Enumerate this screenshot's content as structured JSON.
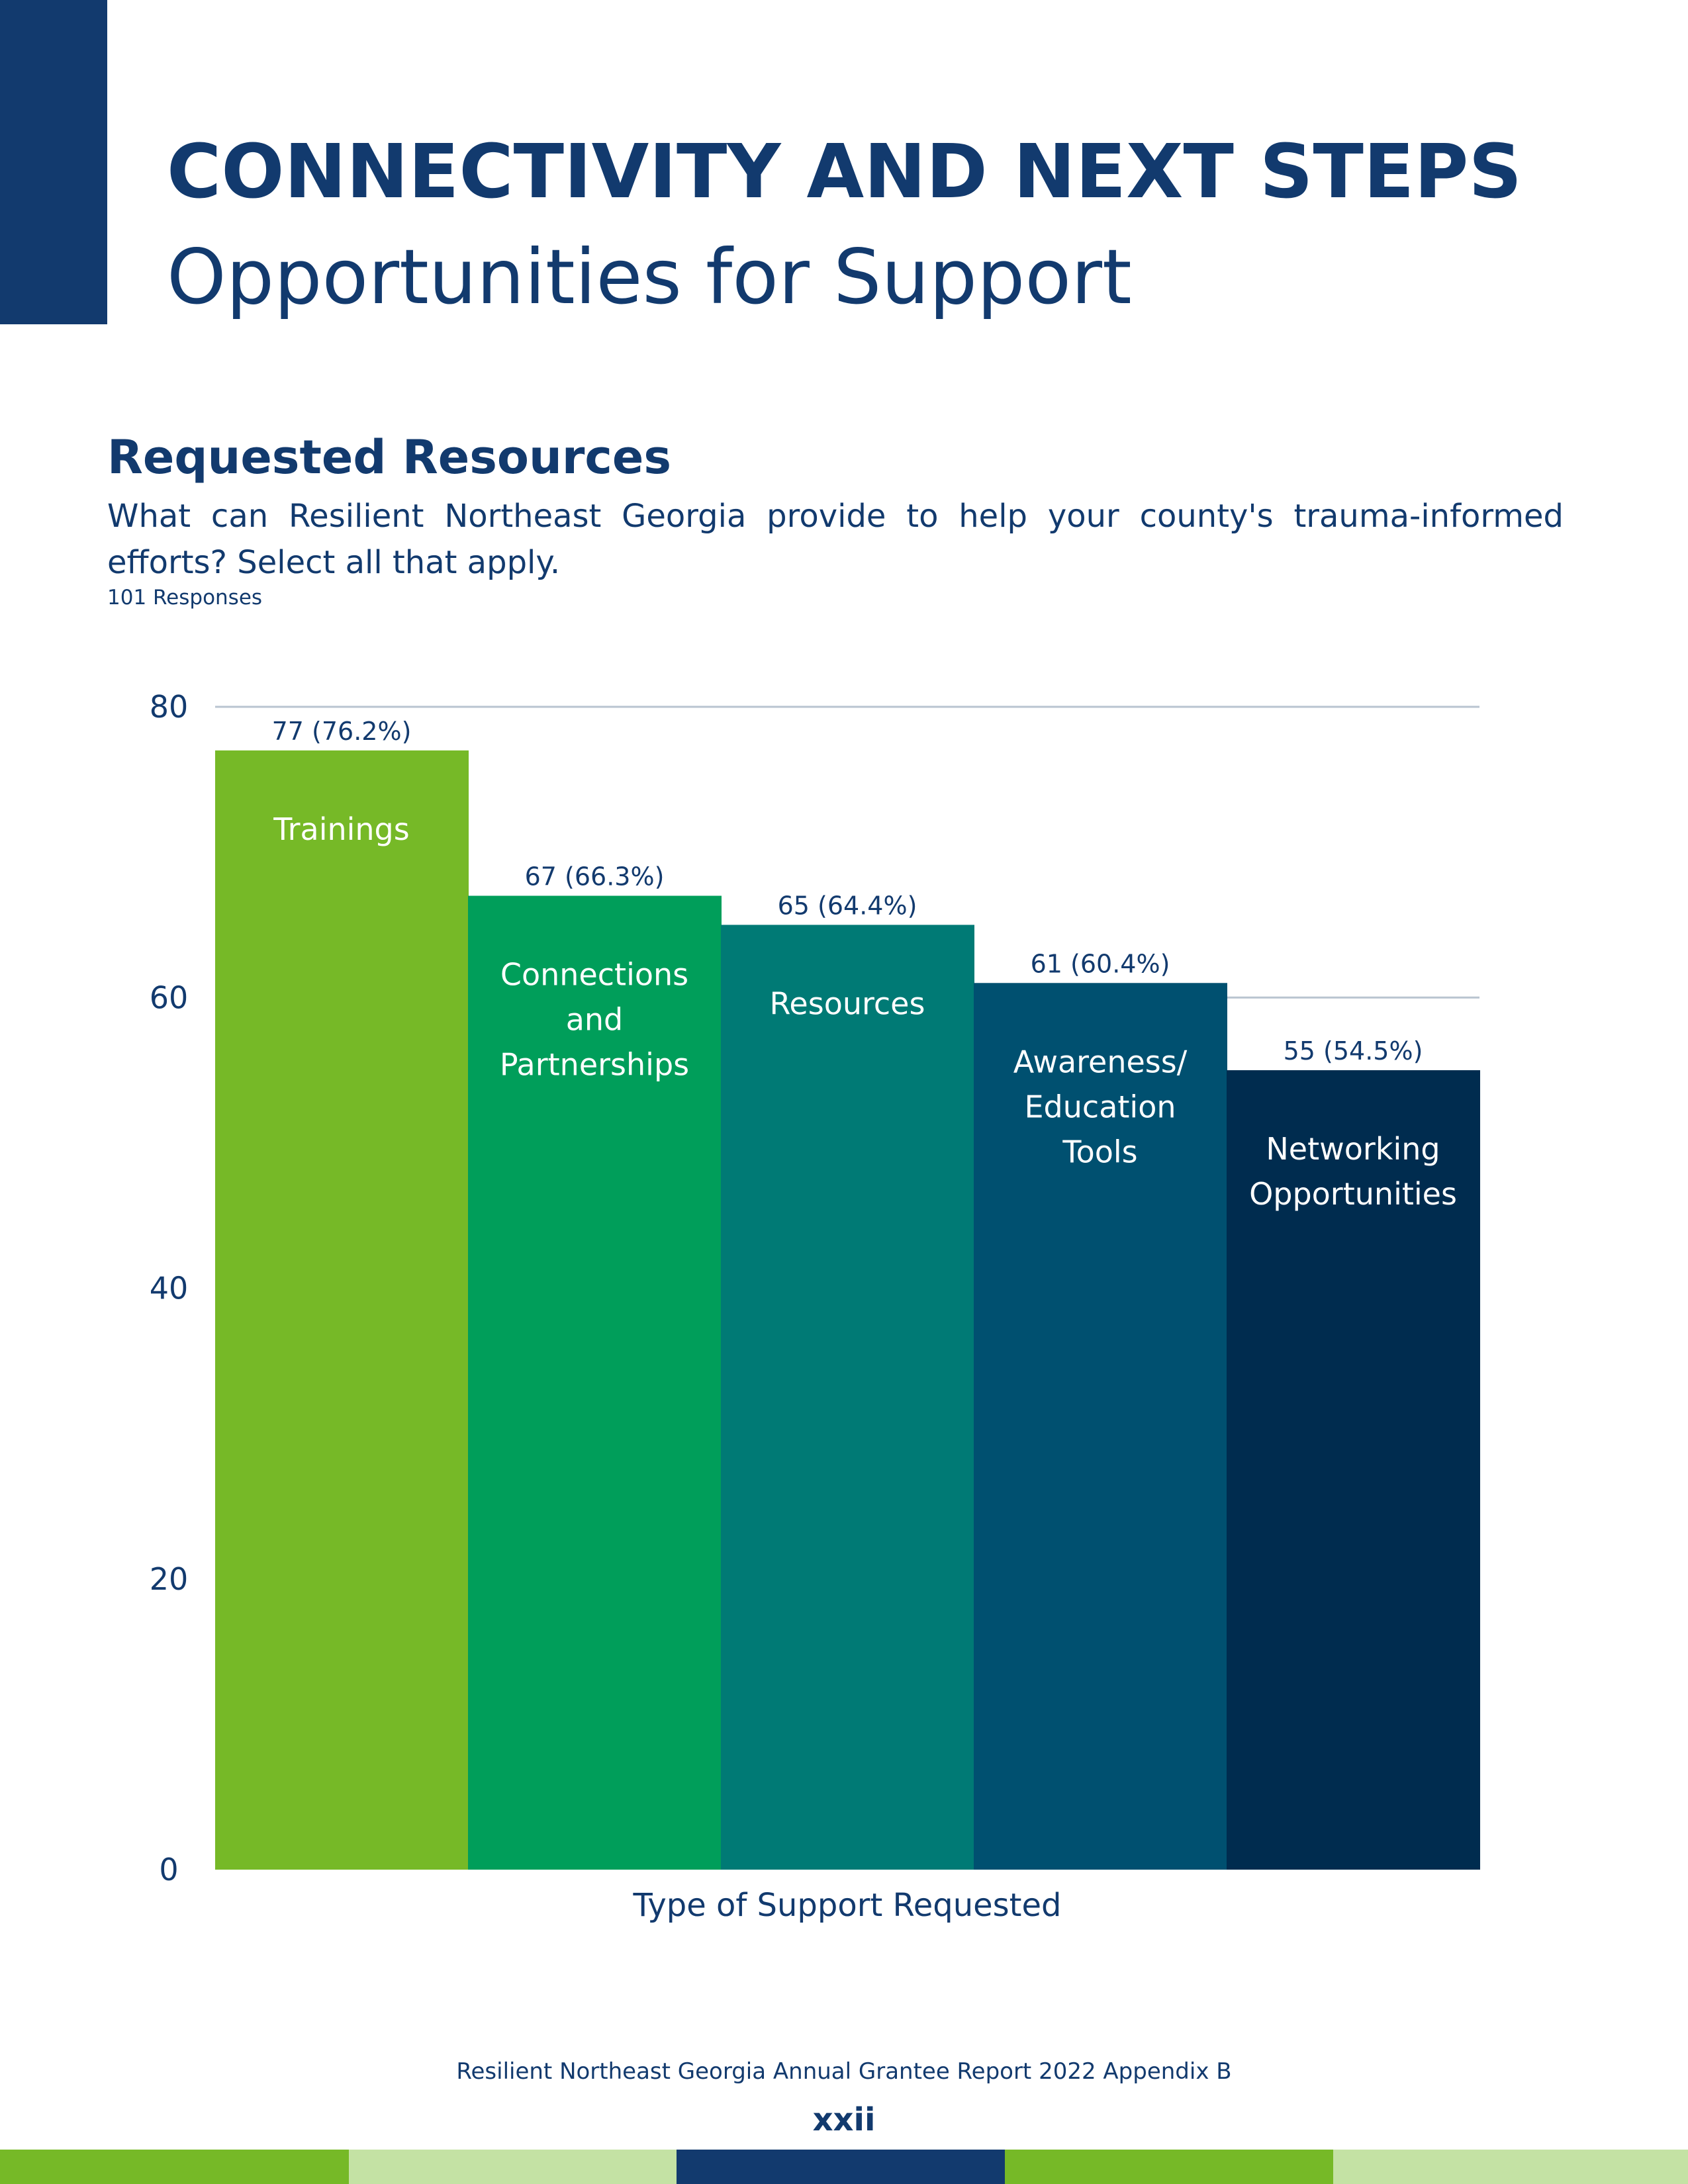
{
  "header": {
    "title": "CONNECTIVITY AND NEXT STEPS",
    "subtitle": "Opportunities for Support"
  },
  "section": {
    "title": "Requested Resources",
    "question": "What can Resilient Northeast Georgia provide to help your county's trauma-informed efforts? Select all that apply.",
    "responses": "101 Responses"
  },
  "chart_data": {
    "type": "bar",
    "categories": [
      "Trainings",
      "Connections and Partnerships",
      "Resources",
      "Awareness/ Education Tools",
      "Networking Opportunities"
    ],
    "category_lines": [
      [
        "Trainings"
      ],
      [
        "Connections",
        "and",
        "Partnerships"
      ],
      [
        "Resources"
      ],
      [
        "Awareness/",
        "Education",
        "Tools"
      ],
      [
        "Networking",
        "Opportunities"
      ]
    ],
    "values": [
      77,
      67,
      65,
      61,
      55
    ],
    "value_labels": [
      "77 (76.2%)",
      "67 (66.3%)",
      "65 (64.4%)",
      "61 (60.4%)",
      "55 (54.5%)"
    ],
    "colors": [
      "#76b927",
      "#009e5a",
      "#007a75",
      "#005070",
      "#002c4f"
    ],
    "xlabel": "Type of Support Requested",
    "ylabel": "",
    "ylim": [
      0,
      80
    ],
    "yticks": [
      0,
      20,
      40,
      60,
      80
    ],
    "gridlines": [
      60,
      80
    ],
    "legend": "none"
  },
  "footer": {
    "text": "Resilient Northeast Georgia Annual Grantee Report 2022 Appendix B",
    "page": "xxii",
    "strip_colors": [
      "#76b927",
      "#c4e2a4",
      "#123a6e",
      "#76b927",
      "#c4e2a4"
    ]
  }
}
